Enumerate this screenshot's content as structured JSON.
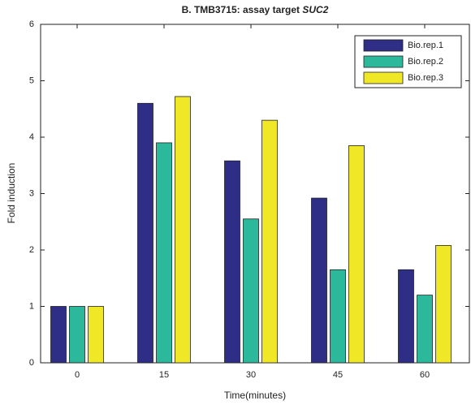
{
  "chart_data": {
    "type": "bar",
    "title": "B. TMB3715: assay target",
    "title_emphasis": "SUC2",
    "x_label": "Time(minutes)",
    "y_label": "Fold induction",
    "categories": [
      "0",
      "15",
      "30",
      "45",
      "60"
    ],
    "series": [
      {
        "name": "Bio.rep.1",
        "color": "#2e2e86",
        "values": [
          1,
          4.6,
          3.58,
          2.92,
          1.65
        ]
      },
      {
        "name": "Bio.rep.2",
        "color": "#2cb89a",
        "values": [
          1,
          3.9,
          2.55,
          1.65,
          1.2
        ]
      },
      {
        "name": "Bio.rep.3",
        "color": "#f0e826",
        "values": [
          1,
          4.72,
          4.3,
          3.85,
          2.08
        ]
      }
    ],
    "ylim": [
      0,
      6
    ],
    "yticks": [
      0,
      1,
      2,
      3,
      4,
      5,
      6
    ],
    "legend": "upper-right",
    "grid": false
  }
}
